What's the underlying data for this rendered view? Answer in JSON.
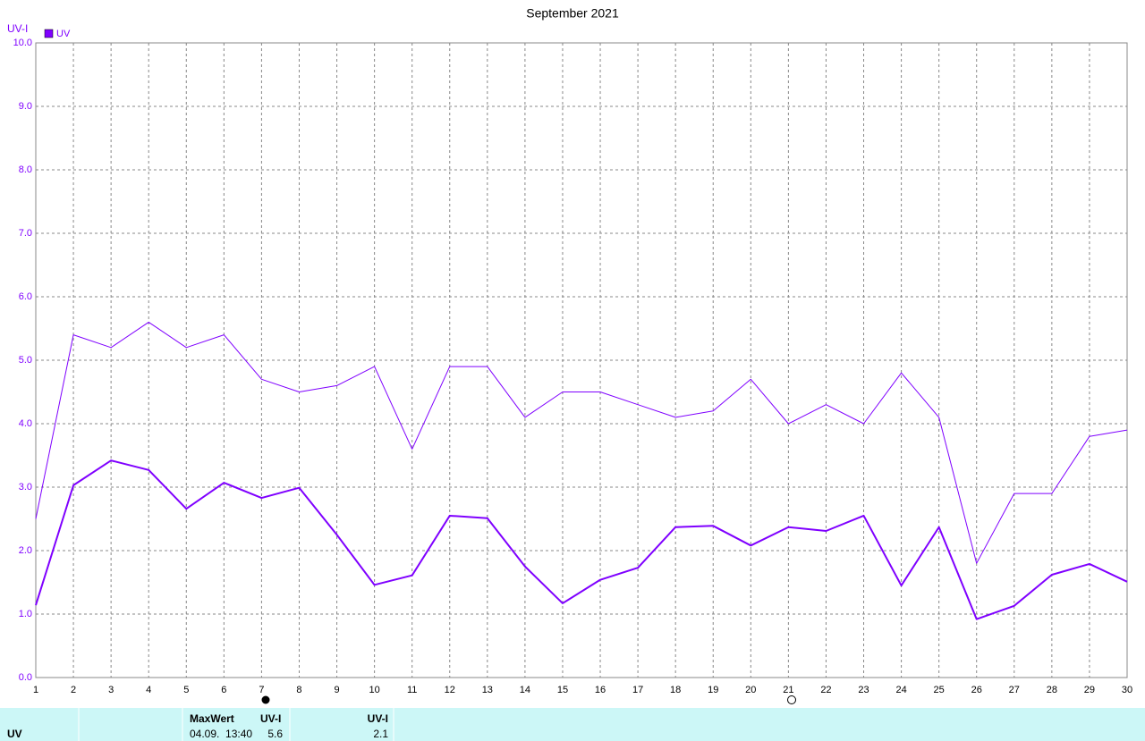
{
  "chart_data": {
    "type": "line",
    "title": "September 2021",
    "y_label": "UV-I",
    "x": [
      1,
      2,
      3,
      4,
      5,
      6,
      7,
      8,
      9,
      10,
      11,
      12,
      13,
      14,
      15,
      16,
      17,
      18,
      19,
      20,
      21,
      22,
      23,
      24,
      25,
      26,
      27,
      28,
      29,
      30
    ],
    "xlim": [
      1,
      30
    ],
    "xticks": [
      1,
      2,
      3,
      4,
      5,
      6,
      7,
      8,
      9,
      10,
      11,
      12,
      13,
      14,
      15,
      16,
      17,
      18,
      19,
      20,
      21,
      22,
      23,
      24,
      25,
      26,
      27,
      28,
      29,
      30
    ],
    "ylim": [
      0,
      10
    ],
    "yticks": [
      {
        "value": 0,
        "label": "0.0"
      },
      {
        "value": 1,
        "label": "1.0"
      },
      {
        "value": 2,
        "label": "2.0"
      },
      {
        "value": 3,
        "label": "3.0"
      },
      {
        "value": 4,
        "label": "4.0"
      },
      {
        "value": 5,
        "label": "5.0"
      },
      {
        "value": 6,
        "label": "6.0"
      },
      {
        "value": 7,
        "label": "7.0"
      },
      {
        "value": 8,
        "label": "8.0"
      },
      {
        "value": 9,
        "label": "9.0"
      },
      {
        "value": 10,
        "label": "10.0"
      }
    ],
    "grid": true,
    "legend": "top-left",
    "series": [
      {
        "name": "UV",
        "color": "#7f00ff",
        "width": 2,
        "values": [
          1.14,
          3.03,
          3.42,
          3.27,
          2.66,
          3.07,
          2.83,
          2.99,
          2.25,
          1.46,
          1.61,
          2.55,
          2.51,
          1.75,
          1.17,
          1.54,
          1.73,
          2.37,
          2.39,
          2.08,
          2.37,
          2.31,
          2.55,
          1.45,
          2.37,
          0.92,
          1.13,
          1.62,
          1.79,
          1.51
        ]
      },
      {
        "color": "#7f00ff",
        "width": 1,
        "values": [
          2.5,
          5.4,
          5.2,
          5.6,
          5.2,
          5.4,
          4.7,
          4.5,
          4.6,
          4.9,
          3.6,
          4.9,
          4.9,
          4.1,
          4.5,
          4.5,
          4.3,
          4.1,
          4.2,
          4.7,
          4.0,
          4.3,
          4.0,
          4.8,
          4.1,
          1.8,
          2.9,
          2.9,
          3.8,
          3.9
        ]
      }
    ]
  },
  "footer": {
    "name": "UV",
    "max_header": "MaxWert",
    "max_unit": "UV-I",
    "max_time": "04.09.  13:40",
    "max_value": "5.6",
    "avg_unit": "UV-I",
    "avg_value": "2.1"
  }
}
